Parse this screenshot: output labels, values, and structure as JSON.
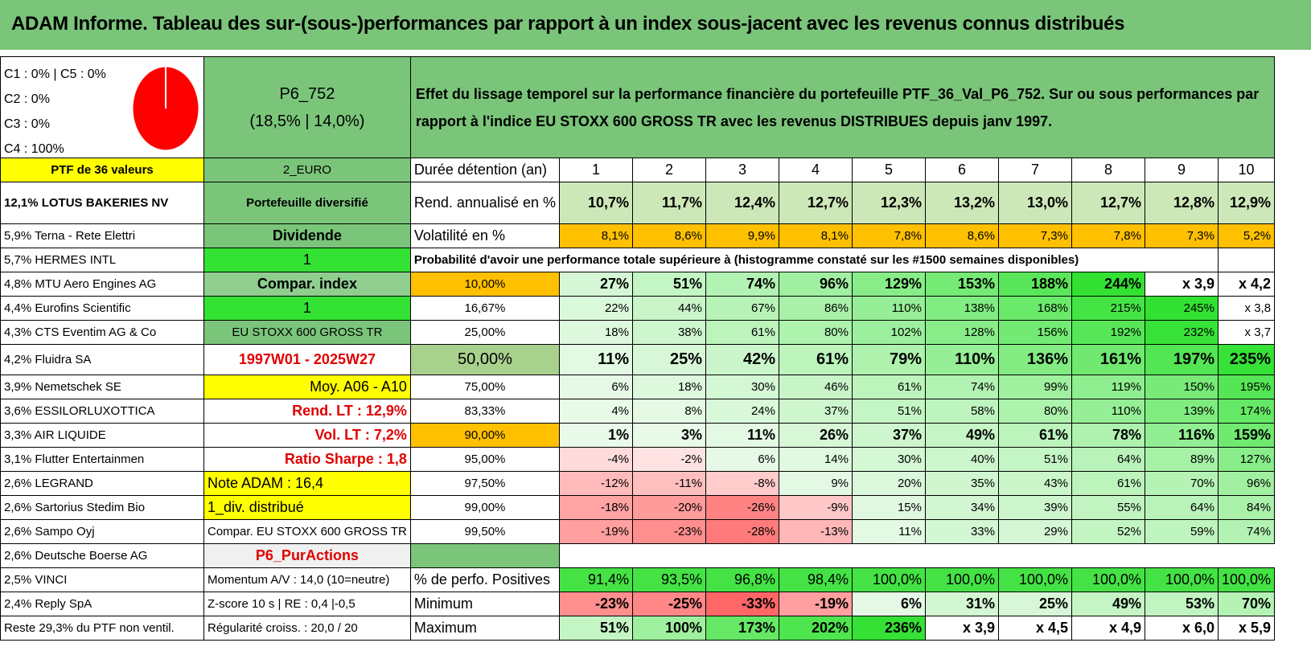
{
  "title": "ADAM Informe. Tableau des sur-(sous-)performances par rapport à un index sous-jacent avec les revenus connus distribués",
  "pie": {
    "legend": [
      "C1 : 0% | C5 : 0%",
      "C2 : 0%",
      "C3 : 0%",
      "C4 : 100%"
    ],
    "color": "#ff0000"
  },
  "portfolio": {
    "code": "P6_752",
    "stats": "(18,5% | 14,0%)",
    "description": "Effet du lissage temporel sur la performance financière du portefeuille PTF_36_Val_P6_752. Sur ou sous performances par rapport à l'indice EU STOXX 600 GROSS TR avec les revenus DISTRIBUES depuis janv 1997."
  },
  "ptf_label": "PTF de 36 valeurs",
  "currency": "2_EURO",
  "row_labels": {
    "duree": "Durée détention (an)",
    "rend": "Rend. annualisé en %",
    "vol": "Volatilité en %",
    "proba": "Probabilité d'avoir une performance totale supérieure à (histogramme constaté sur les #1500 semaines disponibles)",
    "pos": "% de perfo. Positives",
    "min": "Minimum",
    "max": "Maximum"
  },
  "years": [
    "1",
    "2",
    "3",
    "4",
    "5",
    "6",
    "7",
    "8",
    "9",
    "10"
  ],
  "rend": [
    "10,7%",
    "11,7%",
    "12,4%",
    "12,7%",
    "12,3%",
    "13,2%",
    "13,0%",
    "12,7%",
    "12,8%",
    "12,9%"
  ],
  "vol": [
    "8,1%",
    "8,6%",
    "9,9%",
    "8,1%",
    "7,8%",
    "8,6%",
    "7,3%",
    "7,8%",
    "7,3%",
    "5,2%"
  ],
  "holdings": [
    "12,1% LOTUS BAKERIES NV",
    "5,9% Terna - Rete Elettri",
    "5,7% HERMES INTL",
    "4,8% MTU Aero Engines AG",
    "4,4% Eurofins Scientific",
    "4,3% CTS Eventim AG & Co",
    "4,2% Fluidra SA",
    "3,9% Nemetschek SE",
    "3,6% ESSILORLUXOTTICA",
    "3,3% AIR LIQUIDE",
    "3,1% Flutter Entertainmen",
    "2,6% LEGRAND",
    "2,6% Sartorius Stedim Bio",
    "2,6% Sampo Oyj",
    "2,6% Deutsche Boerse AG",
    "2,5% VINCI",
    "2,4% Reply SpA",
    "Reste 29,3% du PTF non ventil."
  ],
  "side": [
    "Portefeuille diversifié",
    "Dividende",
    "1",
    "Compar. index",
    "1",
    "EU STOXX 600 GROSS TR",
    "1997W01 - 2025W27",
    "Moy. A06 - A10",
    "Rend. LT : 12,9%",
    "Vol. LT : 7,2%",
    "Ratio Sharpe : 1,8",
    "Note ADAM : 16,4",
    "1_div. distribué",
    "Compar. EU STOXX 600 GROSS TR",
    "P6_PurActions",
    "Momentum A/V : 14,0 (10=neutre)",
    "Z-score 10 s | RE : 0,4 |-0,5",
    "Régularité croiss. : 20,0 / 20"
  ],
  "proba_rows": [
    {
      "threshold": "10,00%",
      "values": [
        "27%",
        "51%",
        "74%",
        "96%",
        "129%",
        "153%",
        "188%",
        "244%",
        "x 3,9",
        "x 4,2"
      ]
    },
    {
      "threshold": "16,67%",
      "values": [
        "22%",
        "44%",
        "67%",
        "86%",
        "110%",
        "138%",
        "168%",
        "215%",
        "245%",
        "x 3,8"
      ]
    },
    {
      "threshold": "25,00%",
      "values": [
        "18%",
        "38%",
        "61%",
        "80%",
        "102%",
        "128%",
        "156%",
        "192%",
        "232%",
        "x 3,7"
      ]
    },
    {
      "threshold": "50,00%",
      "values": [
        "11%",
        "25%",
        "42%",
        "61%",
        "79%",
        "110%",
        "136%",
        "161%",
        "197%",
        "235%"
      ]
    },
    {
      "threshold": "75,00%",
      "values": [
        "6%",
        "18%",
        "30%",
        "46%",
        "61%",
        "74%",
        "99%",
        "119%",
        "150%",
        "195%"
      ]
    },
    {
      "threshold": "83,33%",
      "values": [
        "4%",
        "8%",
        "24%",
        "37%",
        "51%",
        "58%",
        "80%",
        "110%",
        "139%",
        "174%"
      ]
    },
    {
      "threshold": "90,00%",
      "values": [
        "1%",
        "3%",
        "11%",
        "26%",
        "37%",
        "49%",
        "61%",
        "78%",
        "116%",
        "159%"
      ]
    },
    {
      "threshold": "95,00%",
      "values": [
        "-4%",
        "-2%",
        "6%",
        "14%",
        "30%",
        "40%",
        "51%",
        "64%",
        "89%",
        "127%"
      ]
    },
    {
      "threshold": "97,50%",
      "values": [
        "-12%",
        "-11%",
        "-8%",
        "9%",
        "20%",
        "35%",
        "43%",
        "61%",
        "70%",
        "96%"
      ]
    },
    {
      "threshold": "99,00%",
      "values": [
        "-18%",
        "-20%",
        "-26%",
        "-9%",
        "15%",
        "34%",
        "39%",
        "55%",
        "64%",
        "84%"
      ]
    },
    {
      "threshold": "99,50%",
      "values": [
        "-19%",
        "-23%",
        "-28%",
        "-13%",
        "11%",
        "33%",
        "29%",
        "52%",
        "59%",
        "74%"
      ]
    }
  ],
  "pos": [
    "91,4%",
    "93,5%",
    "96,8%",
    "98,4%",
    "100,0%",
    "100,0%",
    "100,0%",
    "100,0%",
    "100,0%",
    "100,0%"
  ],
  "min": [
    "-23%",
    "-25%",
    "-33%",
    "-19%",
    "6%",
    "31%",
    "25%",
    "49%",
    "53%",
    "70%"
  ],
  "max": [
    "51%",
    "100%",
    "173%",
    "202%",
    "236%",
    "x 3,9",
    "x 4,5",
    "x 4,9",
    "x 6,0",
    "x 5,9"
  ],
  "colors": {
    "title_bg": "#7ac57a",
    "yellow": "#ffff00",
    "orange": "#ffc000",
    "bright_green": "#33e233",
    "negative_red": "#f08080"
  }
}
